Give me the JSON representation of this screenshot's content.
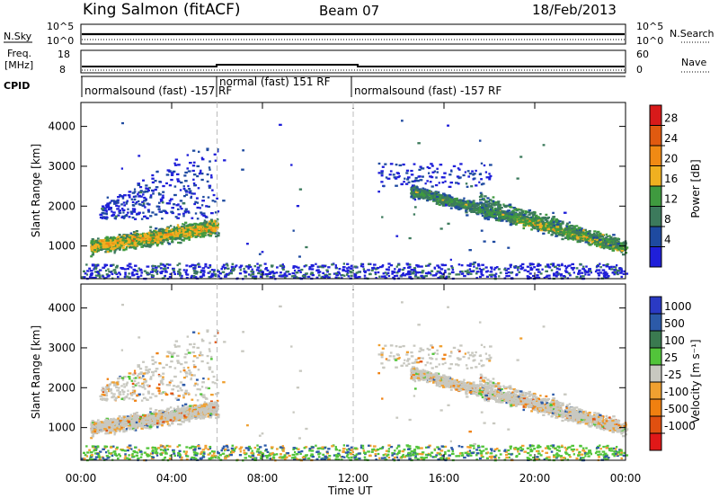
{
  "header": {
    "station": "King Salmon (fitACF)",
    "beam": "Beam 07",
    "date": "18/Feb/2013"
  },
  "noise_panel": {
    "left_label": "N.Sky",
    "left_ticks": [
      "10^5",
      "10^0"
    ],
    "right_label": "N.Search",
    "right_ticks": [
      "10^5",
      "10^0"
    ]
  },
  "freq_panel": {
    "left_label_1": "Freq.",
    "left_label_2": "[MHz]",
    "left_ticks": [
      "18",
      "8"
    ],
    "right_label": "Nave",
    "right_ticks": [
      "60",
      "0"
    ]
  },
  "cpid": {
    "label": "CPID",
    "segments": [
      {
        "name": "normalsound (fast) -157 RF",
        "start_hour": 0,
        "end_hour": 6
      },
      {
        "name": "normal (fast) 151 RF",
        "start_hour": 6,
        "end_hour": 12
      },
      {
        "name": "normalsound (fast) -157 RF",
        "start_hour": 12,
        "end_hour": 24
      }
    ]
  },
  "colors": {
    "power": [
      "#1f1fd9",
      "#1e4aa0",
      "#3c7a5c",
      "#3f9a3f",
      "#f0b020",
      "#f08a14",
      "#e05a10",
      "#d81a1a"
    ],
    "velocity": [
      "#2a3ac4",
      "#2c5aa8",
      "#3a7a50",
      "#52c43a",
      "#c8c8c0",
      "#f0a030",
      "#f08010",
      "#e05010",
      "#e01818"
    ]
  },
  "chart_data": [
    {
      "type": "heatmap",
      "panel": "power",
      "ylabel": "Slant Range [km]",
      "y_ticks": [
        1000,
        2000,
        3000,
        4000
      ],
      "x_ticks": [
        "00:00",
        "04:00",
        "08:00",
        "12:00",
        "16:00",
        "20:00",
        "00:00"
      ],
      "x_hours": [
        0,
        4,
        8,
        12,
        16,
        20,
        24
      ],
      "xlim": [
        0,
        24
      ],
      "ylim": [
        180,
        4600
      ],
      "colorbar": {
        "label": "Power [dB]",
        "ticks": [
          "4",
          "8",
          "12",
          "16",
          "20",
          "24",
          "28"
        ],
        "range": [
          0,
          30
        ]
      },
      "features": [
        {
          "hours": [
            0.5,
            6.0
          ],
          "range_km": [
            800,
            2600
          ],
          "peak_power_db": 24
        },
        {
          "hours": [
            13.0,
            24.0
          ],
          "range_km": [
            900,
            2800
          ],
          "peak_power_db": 22
        }
      ]
    },
    {
      "type": "heatmap",
      "panel": "velocity",
      "ylabel": "Slant Range [km]",
      "xlabel": "Time UT",
      "y_ticks": [
        1000,
        2000,
        3000,
        4000
      ],
      "x_ticks": [
        "00:00",
        "04:00",
        "08:00",
        "12:00",
        "16:00",
        "20:00",
        "00:00"
      ],
      "x_hours": [
        0,
        4,
        8,
        12,
        16,
        20,
        24
      ],
      "xlim": [
        0,
        24
      ],
      "ylim": [
        180,
        4600
      ],
      "colorbar": {
        "label": "Velocity [m s⁻¹]",
        "ticks": [
          "1000",
          "500",
          "100",
          "25",
          "-25",
          "-100",
          "-500",
          "-1000"
        ]
      }
    }
  ]
}
